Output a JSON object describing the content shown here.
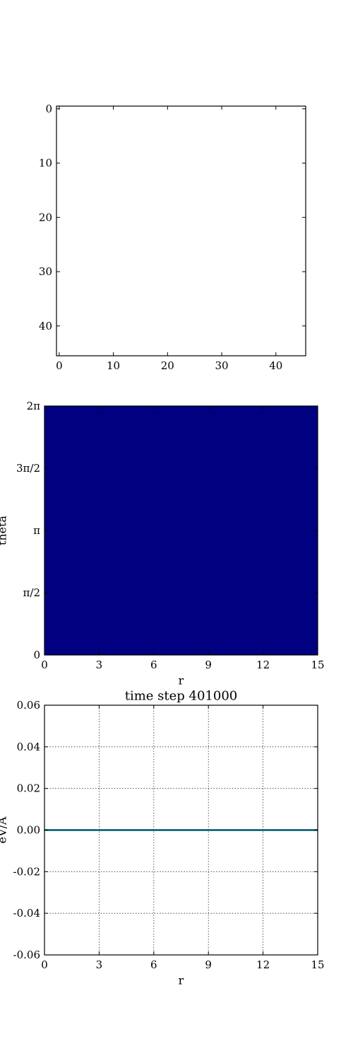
{
  "chart_data": [
    {
      "type": "heatmap",
      "title": "",
      "xlabel": "",
      "ylabel": "",
      "xlim": [
        -0.5,
        45.5
      ],
      "ylim": [
        45.5,
        -0.5
      ],
      "y_inverted": true,
      "xticks": [
        0,
        10,
        20,
        30,
        40
      ],
      "yticks": [
        0,
        10,
        20,
        30,
        40
      ],
      "fill": "#ffffff"
    },
    {
      "type": "heatmap",
      "title": "",
      "xlabel": "r",
      "ylabel": "theta",
      "xlim": [
        0,
        15
      ],
      "ylim": [
        0,
        6.2832
      ],
      "xticks": [
        0,
        3,
        6,
        9,
        12,
        15
      ],
      "yticks": [
        {
          "value": 0,
          "label": "0"
        },
        {
          "value": 1.5708,
          "label": "π/2"
        },
        {
          "value": 3.1416,
          "label": "π"
        },
        {
          "value": 4.7124,
          "label": "3π/2"
        },
        {
          "value": 6.2832,
          "label": "2π"
        }
      ],
      "fill": "#000080"
    },
    {
      "type": "line",
      "title": "time step 401000",
      "xlabel": "r",
      "ylabel": "eV/A",
      "xlim": [
        0,
        15
      ],
      "ylim": [
        -0.06,
        0.06
      ],
      "grid": true,
      "xticks": [
        0,
        3,
        6,
        9,
        12,
        15
      ],
      "yticks": [
        {
          "value": -0.06,
          "label": "-0.06"
        },
        {
          "value": -0.04,
          "label": "-0.04"
        },
        {
          "value": -0.02,
          "label": "-0.02"
        },
        {
          "value": 0,
          "label": "0.00"
        },
        {
          "value": 0.02,
          "label": "0.02"
        },
        {
          "value": 0.04,
          "label": "0.04"
        },
        {
          "value": 0.06,
          "label": "0.06"
        }
      ],
      "series": [
        {
          "color": "#2a9d8f",
          "x": [
            0,
            15
          ],
          "y": [
            0,
            0
          ]
        },
        {
          "color": "#1f3b73",
          "x": [
            0,
            15
          ],
          "y": [
            0,
            0
          ]
        }
      ]
    }
  ]
}
